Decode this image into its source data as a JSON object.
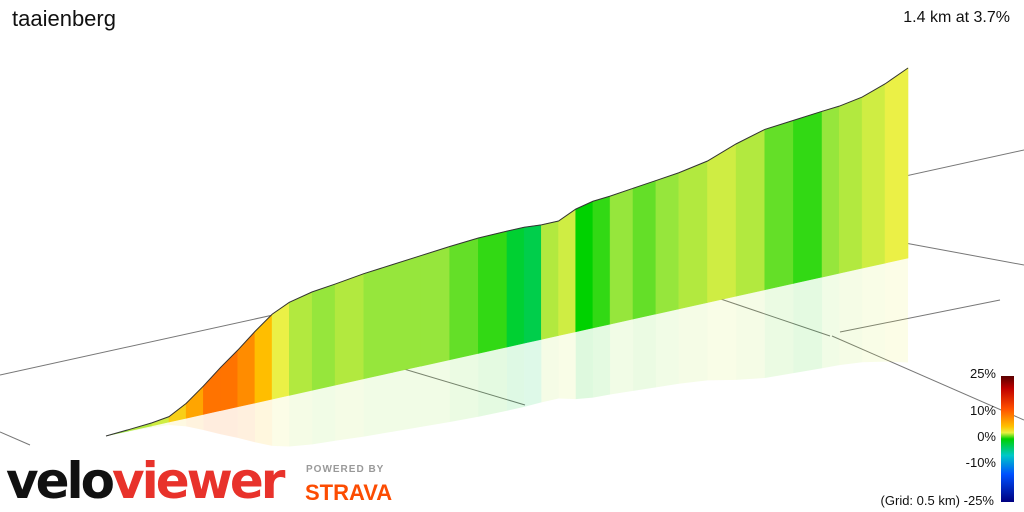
{
  "header": {
    "title": "taaienberg",
    "stats": "1.4 km at 3.7%"
  },
  "legend": {
    "ticks": [
      "25%",
      "10%",
      "0%",
      "-10%",
      "-25%"
    ],
    "grid_note": "(Grid: 0.5 km)"
  },
  "branding": {
    "velo": "velo",
    "viewer": "viewer",
    "powered": "POWERED BY",
    "strava": "STRAVA"
  },
  "chart_data": {
    "type": "area",
    "title": "taaienberg",
    "subtitle": "1.4 km at 3.7%",
    "x_unit": "km",
    "y_unit": "relative elevation",
    "points": [
      [
        0.0,
        0.0,
        2
      ],
      [
        0.04,
        0.5,
        3
      ],
      [
        0.08,
        1.1,
        4
      ],
      [
        0.11,
        2.0,
        5
      ],
      [
        0.14,
        5.5,
        8
      ],
      [
        0.17,
        10.5,
        10
      ],
      [
        0.2,
        16.0,
        12
      ],
      [
        0.23,
        21.0,
        12
      ],
      [
        0.26,
        26.5,
        11
      ],
      [
        0.29,
        31.5,
        9
      ],
      [
        0.32,
        34.5,
        6
      ],
      [
        0.36,
        36.5,
        4
      ],
      [
        0.4,
        37.5,
        3
      ],
      [
        0.45,
        39.0,
        4
      ],
      [
        0.5,
        40.0,
        3
      ],
      [
        0.55,
        41.0,
        3
      ],
      [
        0.6,
        42.0,
        3
      ],
      [
        0.65,
        42.8,
        2
      ],
      [
        0.7,
        43.0,
        1
      ],
      [
        0.73,
        43.0,
        -2
      ],
      [
        0.76,
        42.5,
        -3
      ],
      [
        0.79,
        42.5,
        4
      ],
      [
        0.82,
        45.5,
        5
      ],
      [
        0.85,
        47.0,
        0
      ],
      [
        0.88,
        47.5,
        1
      ],
      [
        0.92,
        48.5,
        3
      ],
      [
        0.96,
        49.5,
        2
      ],
      [
        1.0,
        50.5,
        3
      ],
      [
        1.05,
        52.5,
        4
      ],
      [
        1.1,
        56.5,
        5
      ],
      [
        1.15,
        59.5,
        4
      ],
      [
        1.2,
        60.5,
        2
      ],
      [
        1.25,
        61.5,
        1
      ],
      [
        1.28,
        62.0,
        3
      ],
      [
        1.32,
        63.5,
        4
      ],
      [
        1.36,
        66.5,
        5
      ],
      [
        1.4,
        70.5,
        6
      ]
    ],
    "grid_km": 0.5,
    "color_scale": {
      "min": -25,
      "max": 25
    }
  }
}
